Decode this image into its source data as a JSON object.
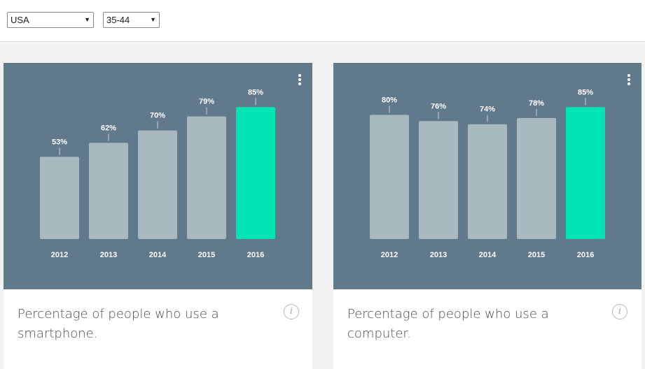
{
  "filters": {
    "country": "USA",
    "age_group": "35-44"
  },
  "colors": {
    "chart_background": "#607a8b",
    "bar_default": "#a9b9c0",
    "bar_highlight": "#00e5b4",
    "label_text": "#ffffff"
  },
  "cards": [
    {
      "caption": "Percentage of people who use a smartphone.",
      "info_icon": "i"
    },
    {
      "caption": "Percentage of people who use a computer.",
      "info_icon": "i"
    }
  ],
  "chart_data": [
    {
      "type": "bar",
      "title": "",
      "categories": [
        "2012",
        "2013",
        "2014",
        "2015",
        "2016"
      ],
      "values": [
        53,
        62,
        70,
        79,
        85
      ],
      "value_labels": [
        "53%",
        "62%",
        "70%",
        "79%",
        "85%"
      ],
      "highlight_index": 4,
      "xlabel": "",
      "ylabel": "",
      "ylim": [
        0,
        100
      ],
      "grid": false
    },
    {
      "type": "bar",
      "title": "",
      "categories": [
        "2012",
        "2013",
        "2014",
        "2015",
        "2016"
      ],
      "values": [
        80,
        76,
        74,
        78,
        85
      ],
      "value_labels": [
        "80%",
        "76%",
        "74%",
        "78%",
        "85%"
      ],
      "highlight_index": 4,
      "xlabel": "",
      "ylabel": "",
      "ylim": [
        0,
        100
      ],
      "grid": false
    }
  ]
}
